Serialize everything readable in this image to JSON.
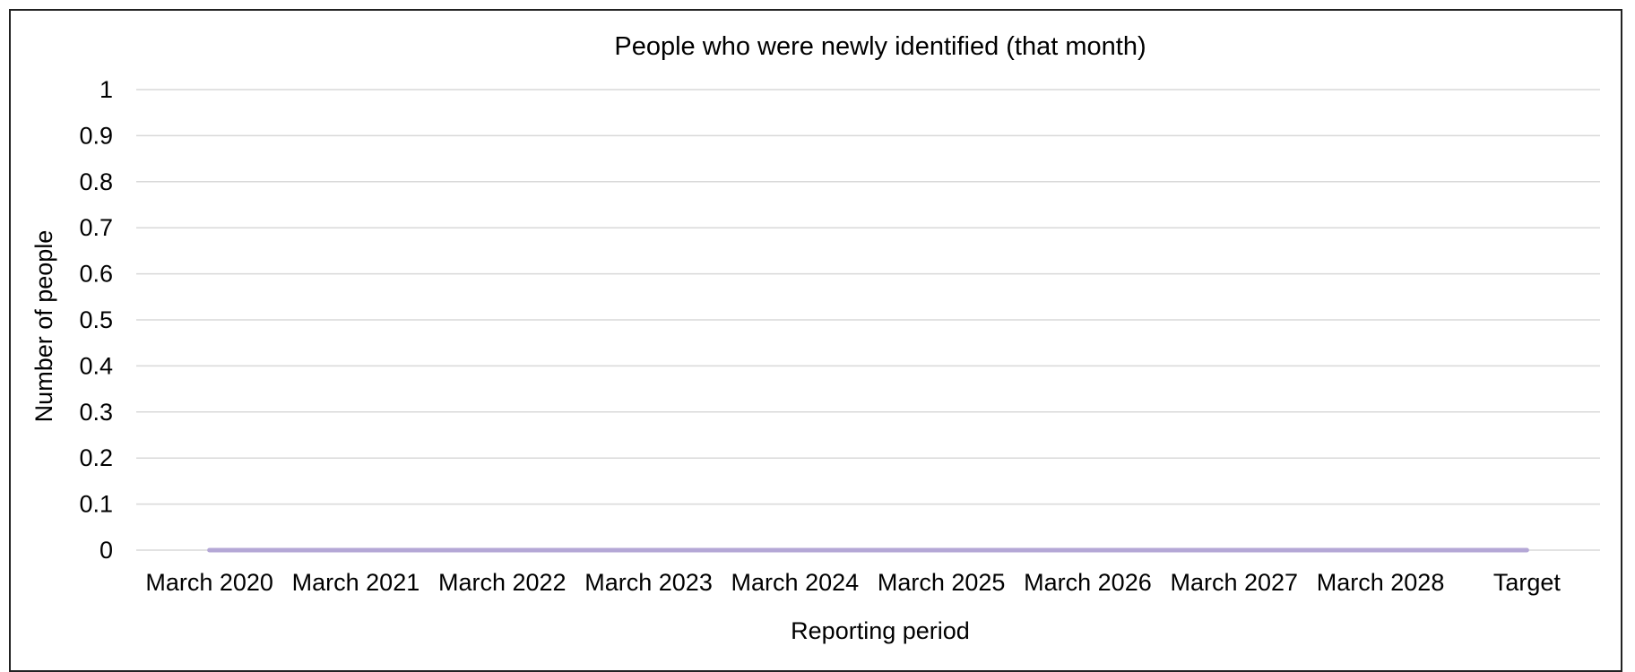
{
  "chart_data": {
    "type": "line",
    "title": "People who were newly identified (that month)",
    "xlabel": "Reporting period",
    "ylabel": "Number of people",
    "categories": [
      "March 2020",
      "March 2021",
      "March 2022",
      "March 2023",
      "March 2024",
      "March 2025",
      "March 2026",
      "March 2027",
      "March 2028",
      "Target"
    ],
    "series": [
      {
        "values": [
          0,
          0,
          0,
          0,
          0,
          0,
          0,
          0,
          0,
          0
        ],
        "color": "#b4a7d6"
      }
    ],
    "y_ticks": [
      "0",
      "0.1",
      "0.2",
      "0.3",
      "0.4",
      "0.5",
      "0.6",
      "0.7",
      "0.8",
      "0.9",
      "1"
    ],
    "ylim": [
      0,
      1
    ],
    "grid": true,
    "gridline_color": "#d9d9d9",
    "legend": "none"
  }
}
